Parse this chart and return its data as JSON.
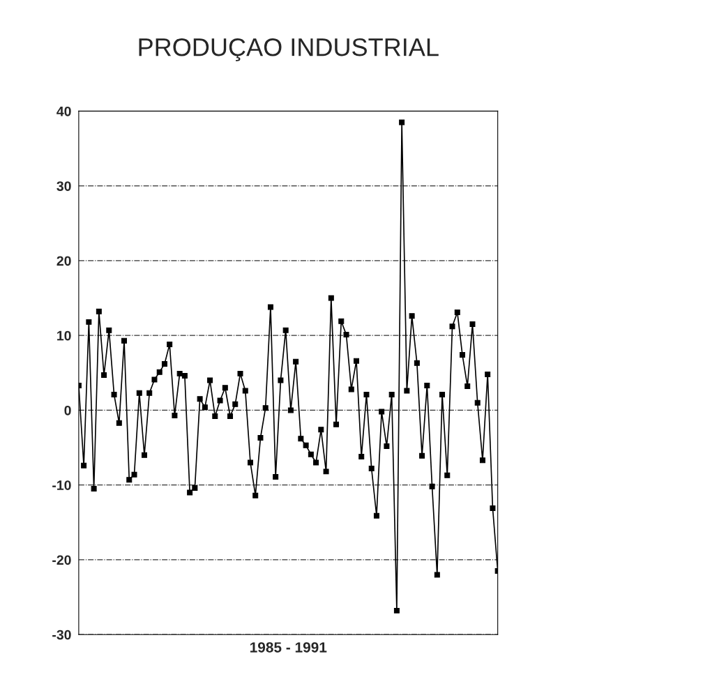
{
  "chart_data": {
    "type": "line",
    "title": "PRODUÇAO INDUSTRIAL",
    "xlabel": "1985 - 1991",
    "categories": [
      null,
      null,
      null,
      null,
      null,
      null,
      null,
      null,
      null,
      null,
      null,
      null,
      null,
      null,
      null,
      null,
      null,
      null,
      null,
      null,
      null,
      null,
      null,
      null,
      null,
      null,
      null,
      null,
      null,
      null,
      null,
      null,
      null,
      null,
      null,
      null,
      null,
      null,
      null,
      null,
      null,
      null,
      null,
      null,
      null,
      null,
      null,
      null,
      null,
      null,
      null,
      null,
      null,
      null,
      null,
      null,
      null,
      null,
      null,
      null,
      null,
      null,
      null,
      null,
      null,
      null,
      null,
      null,
      null,
      null,
      null,
      null,
      null,
      null,
      null,
      null,
      null,
      null,
      null,
      null,
      null,
      null,
      null,
      null
    ],
    "series": [
      {
        "color": "#000000",
        "values": [
          3.3,
          -7.4,
          11.8,
          -10.5,
          13.2,
          4.7,
          10.7,
          2.1,
          -1.7,
          9.3,
          -9.3,
          -8.6,
          2.3,
          -6.0,
          2.3,
          4.1,
          5.1,
          6.2,
          8.8,
          -0.7,
          4.9,
          4.6,
          -11.0,
          -10.4,
          1.5,
          0.4,
          4.0,
          -0.8,
          1.3,
          3.0,
          -0.8,
          0.8,
          4.9,
          2.6,
          -7.0,
          -11.4,
          -3.7,
          0.3,
          13.8,
          -8.9,
          4.0,
          10.7,
          0.0,
          6.5,
          -3.8,
          -4.7,
          -5.9,
          -7.0,
          -2.6,
          -8.2,
          15.0,
          -1.9,
          11.9,
          10.1,
          2.8,
          6.6,
          -6.2,
          2.1,
          -7.8,
          -14.1,
          -0.2,
          -4.8,
          2.1,
          -26.8,
          38.5,
          2.6,
          12.6,
          6.3,
          -6.1,
          3.3,
          -10.2,
          -22.0,
          2.1,
          -8.7,
          11.2,
          13.1,
          7.4,
          3.2,
          11.5,
          1.0,
          -6.7,
          4.8,
          -13.1,
          -21.5
        ]
      }
    ],
    "ylim": [
      -30,
      40
    ],
    "yticks": [
      -30,
      -20,
      -10,
      0,
      10,
      20,
      30,
      40
    ],
    "grid": "y",
    "marker": "square",
    "line_style": "solid"
  }
}
